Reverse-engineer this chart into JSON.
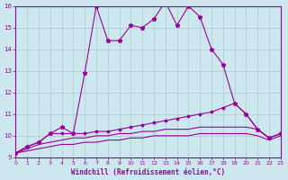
{
  "x": [
    0,
    1,
    2,
    3,
    4,
    5,
    6,
    7,
    8,
    9,
    10,
    11,
    12,
    13,
    14,
    15,
    16,
    17,
    18,
    19,
    20,
    21,
    22,
    23
  ],
  "line1": [
    9.2,
    9.5,
    9.7,
    10.1,
    10.4,
    10.1,
    12.9,
    16.0,
    14.4,
    14.4,
    15.1,
    15.0,
    15.4,
    16.2,
    15.1,
    16.0,
    15.5,
    14.0,
    13.3,
    11.5,
    11.0,
    10.3,
    9.9,
    10.1
  ],
  "line2": [
    9.2,
    9.5,
    9.7,
    10.1,
    10.1,
    10.1,
    10.1,
    10.2,
    10.2,
    10.3,
    10.4,
    10.5,
    10.6,
    10.7,
    10.8,
    10.9,
    11.0,
    11.1,
    11.3,
    11.5,
    11.0,
    10.3,
    9.9,
    10.1
  ],
  "line3": [
    9.2,
    9.4,
    9.6,
    9.7,
    9.8,
    9.9,
    9.9,
    10.0,
    10.0,
    10.1,
    10.1,
    10.2,
    10.2,
    10.3,
    10.3,
    10.3,
    10.4,
    10.4,
    10.4,
    10.4,
    10.4,
    10.3,
    9.9,
    10.1
  ],
  "line4": [
    9.2,
    9.3,
    9.4,
    9.5,
    9.6,
    9.6,
    9.7,
    9.7,
    9.8,
    9.8,
    9.9,
    9.9,
    10.0,
    10.0,
    10.0,
    10.0,
    10.1,
    10.1,
    10.1,
    10.1,
    10.1,
    10.0,
    9.8,
    10.0
  ],
  "color": "#990099",
  "bg_color": "#cce8ee",
  "grid_color": "#aacccc",
  "xlabel": "Windchill (Refroidissement éolien,°C)",
  "ylim": [
    9,
    16
  ],
  "xlim": [
    0,
    23
  ],
  "yticks": [
    9,
    10,
    11,
    12,
    13,
    14,
    15,
    16
  ],
  "xticks": [
    0,
    1,
    2,
    3,
    4,
    5,
    6,
    7,
    8,
    9,
    10,
    11,
    12,
    13,
    14,
    15,
    16,
    17,
    18,
    19,
    20,
    21,
    22,
    23
  ]
}
